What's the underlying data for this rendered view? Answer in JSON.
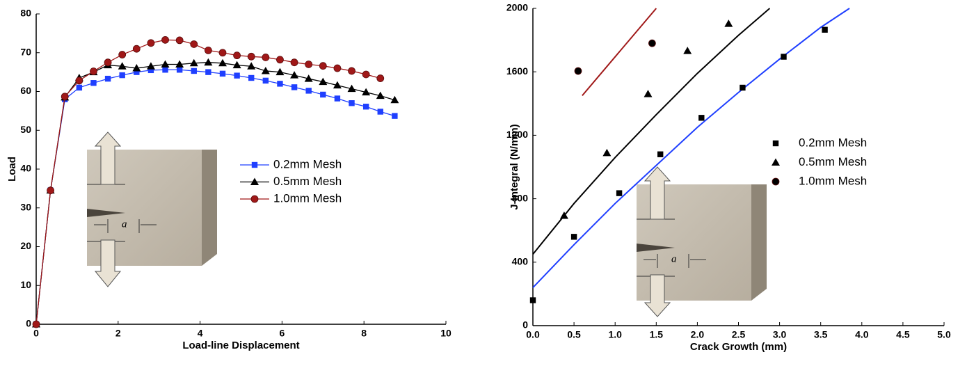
{
  "chart_data": [
    {
      "type": "line",
      "xlabel": "Load-line Displacement",
      "ylabel": "Load",
      "xlim": [
        0,
        10
      ],
      "ylim": [
        0,
        80
      ],
      "xticks": [
        0,
        2,
        4,
        6,
        8,
        10
      ],
      "yticks": [
        0,
        10,
        20,
        30,
        40,
        50,
        60,
        70,
        80
      ],
      "x": [
        0,
        0.35,
        0.7,
        1.05,
        1.4,
        1.75,
        2.1,
        2.45,
        2.8,
        3.15,
        3.5,
        3.85,
        4.2,
        4.55,
        4.9,
        5.25,
        5.6,
        5.95,
        6.3,
        6.65,
        7.0,
        7.35,
        7.7,
        8.05,
        8.4,
        8.75
      ],
      "inset_label": "a",
      "series": [
        {
          "name": "0.2mm Mesh",
          "color": "#1f3fff",
          "marker": "square",
          "values": [
            0,
            34.5,
            58,
            61,
            62.2,
            63.3,
            64.2,
            65,
            65.5,
            65.6,
            65.6,
            65.3,
            65,
            64.6,
            64.1,
            63.5,
            62.8,
            62,
            61.1,
            60.2,
            59.2,
            58.2,
            57,
            56.1,
            54.8,
            53.7
          ]
        },
        {
          "name": "0.5mm Mesh",
          "color": "#000000",
          "marker": "triangle",
          "values": [
            0,
            34.5,
            58.5,
            63.5,
            65,
            66.8,
            66.5,
            66,
            66.5,
            67,
            67,
            67.3,
            67.5,
            67.3,
            66.8,
            66.5,
            65.3,
            65,
            64.2,
            63.3,
            62.5,
            61.6,
            60.7,
            59.8,
            58.9,
            57.8
          ]
        },
        {
          "name": "1.0mm Mesh",
          "color": "#a01818",
          "marker": "circle",
          "values": [
            0,
            34.5,
            58.7,
            62.8,
            65.2,
            67.5,
            69.5,
            71,
            72.5,
            73.3,
            73.2,
            72.2,
            70.6,
            70,
            69.3,
            69,
            68.8,
            68.2,
            67.5,
            67,
            66.6,
            66,
            65.3,
            64.4,
            63.4,
            null
          ]
        }
      ]
    },
    {
      "type": "scatter",
      "xlabel": "Crack Growth (mm)",
      "ylabel": "J-Integral (N/mm)",
      "xlim": [
        0,
        5
      ],
      "ylim": [
        0,
        2000
      ],
      "xticks": [
        {
          "value": 0,
          "label": "0.0"
        },
        0.5,
        {
          "value": 1,
          "label": "1.0"
        },
        1.5,
        {
          "value": 2,
          "label": "2.0"
        },
        2.5,
        {
          "value": 3,
          "label": "3.0"
        },
        3.5,
        {
          "value": 4,
          "label": "4.0"
        },
        4.5,
        {
          "value": 5,
          "label": "5.0"
        }
      ],
      "yticks": [
        0,
        400,
        800,
        1200,
        1600,
        2000
      ],
      "inset_label": "a",
      "series": [
        {
          "name": "0.2mm Mesh",
          "color": "#000000",
          "marker": "square",
          "x": [
            0,
            0.5,
            1.05,
            1.55,
            2.05,
            2.55,
            3.05,
            3.55
          ],
          "values": [
            160,
            560,
            835,
            1080,
            1310,
            1500,
            1695,
            1865
          ]
        },
        {
          "name": "0.5mm Mesh",
          "color": "#000000",
          "marker": "triangle",
          "x": [
            0.38,
            0.9,
            1.4,
            1.88,
            2.38
          ],
          "values": [
            693,
            1088,
            1460,
            1732,
            1903
          ]
        },
        {
          "name": "1.0mm Mesh",
          "color": "#000000",
          "marker": "circle",
          "x": [
            0.55,
            1.45
          ],
          "values": [
            1605,
            1780
          ]
        }
      ],
      "fits": [
        {
          "color": "#1f3fff",
          "x": [
            0,
            0.5,
            1,
            1.5,
            2,
            2.5,
            3,
            3.5,
            3.85
          ],
          "values": [
            240,
            510,
            770,
            1010,
            1250,
            1470,
            1680,
            1880,
            2000
          ]
        },
        {
          "color": "#000000",
          "x": [
            0,
            0.5,
            1,
            1.5,
            2,
            2.5,
            2.88
          ],
          "values": [
            450,
            770,
            1060,
            1330,
            1590,
            1830,
            2000
          ]
        },
        {
          "color": "#a01818",
          "x": [
            0.6,
            1.5
          ],
          "values": [
            1450,
            2000
          ]
        }
      ]
    }
  ]
}
